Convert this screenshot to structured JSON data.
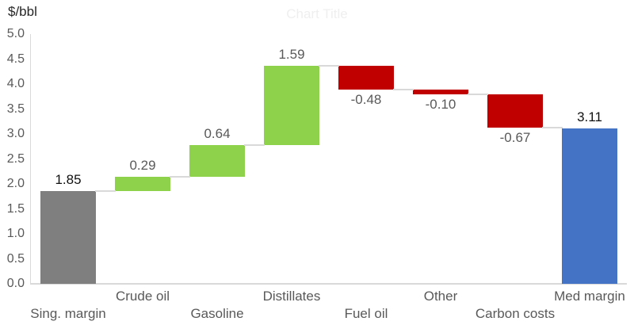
{
  "chart_data": {
    "type": "bar",
    "subtype": "waterfall",
    "title": "Chart Title",
    "ylabel": "$/bbl",
    "xlabel": "",
    "ylim": [
      0,
      5
    ],
    "ytick_step": 0.5,
    "ytick_labels": [
      "5.0",
      "4.5",
      "4.0",
      "3.5",
      "3.0",
      "2.5",
      "2.0",
      "1.5",
      "1.0",
      "0.5",
      "0.0"
    ],
    "grid": false,
    "legend": false,
    "categories": [
      "Sing. margin",
      "Crude oil",
      "Gasoline",
      "Distillates",
      "Fuel oil",
      "Other",
      "Carbon costs",
      "Med margin"
    ],
    "bars": [
      {
        "label": "Sing. margin",
        "value": 1.85,
        "display": "1.85",
        "kind": "start-total"
      },
      {
        "label": "Crude oil",
        "value": 0.29,
        "display": "0.29",
        "kind": "increase"
      },
      {
        "label": "Gasoline",
        "value": 0.64,
        "display": "0.64",
        "kind": "increase"
      },
      {
        "label": "Distillates",
        "value": 1.59,
        "display": "1.59",
        "kind": "increase"
      },
      {
        "label": "Fuel oil",
        "value": -0.48,
        "display": "-0.48",
        "kind": "decrease"
      },
      {
        "label": "Other",
        "value": -0.1,
        "display": "-0.10",
        "kind": "decrease"
      },
      {
        "label": "Carbon costs",
        "value": -0.67,
        "display": "-0.67",
        "kind": "decrease"
      },
      {
        "label": "Med margin",
        "value": 3.11,
        "display": "3.11",
        "kind": "end-total"
      }
    ],
    "colors": {
      "start-total": "#7f7f7f",
      "increase": "#8ed14b",
      "decrease": "#c00000",
      "end-total": "#4472c4",
      "connector": "#d9d9d9",
      "axis": "#d9d9d9",
      "tick_text": "#595959",
      "delta_label_text": "#595959",
      "total_label_text": "#111111",
      "title_text": "#efefef"
    }
  }
}
